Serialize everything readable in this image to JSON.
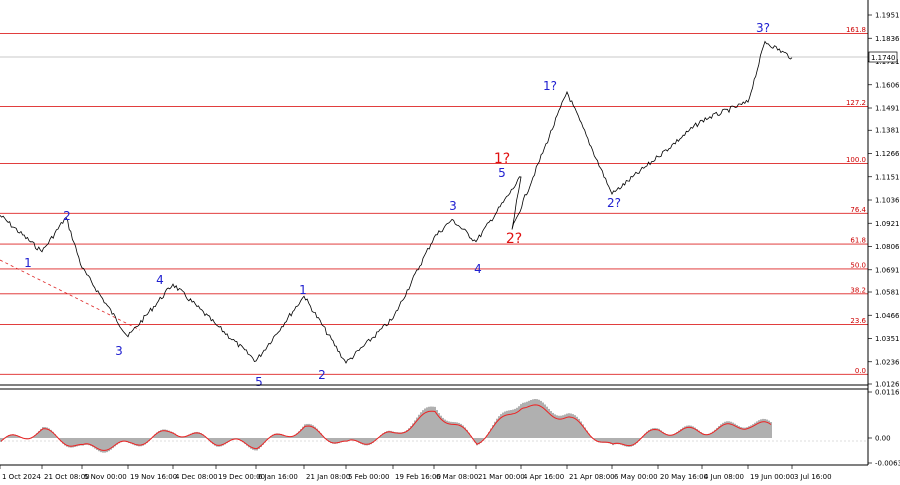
{
  "chart_data": [
    {
      "type": "line",
      "current_price": "1.1740",
      "y_ticks": [
        "1.1951",
        "1.1836",
        "1.1721",
        "1.1606",
        "1.1491",
        "1.1381",
        "1.1266",
        "1.1151",
        "1.1036",
        "1.0921",
        "1.0806",
        "1.0691",
        "1.0581",
        "1.0466",
        "1.0351",
        "1.0236",
        "1.0126"
      ],
      "ylim": [
        1.0126,
        1.1951
      ],
      "x_ticks": [
        "1 Oct 2024",
        "21 Oct 08:00",
        "5 Nov 00:00",
        "19 Nov 16:00",
        "4 Dec 08:00",
        "19 Dec 00:00",
        "6 Jan 16:00",
        "21 Jan 08:00",
        "5 Feb 00:00",
        "19 Feb 16:00",
        "6 Mar 08:00",
        "21 Mar 00:00",
        "4 Apr 16:00",
        "21 Apr 08:00",
        "6 May 00:00",
        "20 May 16:00",
        "4 Jun 08:00",
        "19 Jun 00:00",
        "3 Jul 16:00"
      ],
      "fib_levels": [
        {
          "label": "161.8",
          "value": 1.186
        },
        {
          "label": "127.2",
          "value": 1.1499
        },
        {
          "label": "100.0",
          "value": 1.1216
        },
        {
          "label": "76.4",
          "value": 1.097
        },
        {
          "label": "61.8",
          "value": 1.0818
        },
        {
          "label": "50.0",
          "value": 1.0695
        },
        {
          "label": "38.2",
          "value": 1.0572
        },
        {
          "label": "23.6",
          "value": 1.042
        },
        {
          "label": "0.0",
          "value": 1.0174
        }
      ],
      "wave_labels": [
        {
          "text": "1",
          "color": "blue"
        },
        {
          "text": "2",
          "color": "blue"
        },
        {
          "text": "3",
          "color": "blue"
        },
        {
          "text": "4",
          "color": "blue"
        },
        {
          "text": "5",
          "color": "blue"
        },
        {
          "text": "1",
          "color": "blue"
        },
        {
          "text": "2",
          "color": "blue"
        },
        {
          "text": "3",
          "color": "blue"
        },
        {
          "text": "4",
          "color": "blue"
        },
        {
          "text": "5",
          "color": "blue"
        },
        {
          "text": "1?",
          "color": "red"
        },
        {
          "text": "2?",
          "color": "red"
        },
        {
          "text": "1?",
          "color": "blue"
        },
        {
          "text": "2?",
          "color": "blue"
        },
        {
          "text": "3?",
          "color": "blue"
        }
      ],
      "price_anchors": [
        [
          "1 Oct 2024",
          1.096
        ],
        [
          "21 Oct 08:00",
          1.078
        ],
        [
          "2 Nov",
          1.095
        ],
        [
          "5 Nov 00:00",
          1.07
        ],
        [
          "19 Nov 16:00",
          1.036
        ],
        [
          "4 Dec 08:00",
          1.062
        ],
        [
          "19 Dec 00:00",
          1.042
        ],
        [
          "6 Jan 16:00",
          1.024
        ],
        [
          "21 Jan 08:00",
          1.056
        ],
        [
          "5 Feb 00:00",
          1.023
        ],
        [
          "19 Feb 16:00",
          1.045
        ],
        [
          "6 Mar 08:00",
          1.085
        ],
        [
          "11 Mar",
          1.094
        ],
        [
          "21 Mar 00:00",
          1.083
        ],
        [
          "4 Apr 16:00",
          1.115
        ],
        [
          "8 Apr",
          1.089
        ],
        [
          "21 Apr 08:00",
          1.157
        ],
        [
          "6 May 00:00",
          1.1065
        ],
        [
          "20 May 16:00",
          1.125
        ],
        [
          "4 Jun 08:00",
          1.143
        ],
        [
          "19 Jun 00:00",
          1.152
        ],
        [
          "1 Jul",
          1.182
        ],
        [
          "3 Jul 16:00",
          1.174
        ]
      ]
    },
    {
      "type": "area",
      "y_ticks": [
        "0.01168",
        "0.00",
        "-0.00635"
      ],
      "ylim": [
        -0.00635,
        0.01168
      ],
      "x": [
        "1 Oct 2024",
        "21 Oct 08:00",
        "5 Nov 00:00",
        "19 Nov 16:00",
        "4 Dec 08:00",
        "19 Dec 00:00",
        "6 Jan 16:00",
        "21 Jan 08:00",
        "5 Feb 00:00",
        "19 Feb 16:00",
        "6 Mar 08:00",
        "21 Mar 00:00",
        "4 Apr 16:00",
        "21 Apr 08:00",
        "6 May 00:00",
        "20 May 16:00",
        "4 Jun 08:00",
        "19 Jun 00:00",
        "3 Jul 16:00"
      ],
      "values": [
        -0.001,
        0.002,
        -0.003,
        -0.002,
        0.002,
        -0.001,
        -0.002,
        0.003,
        -0.002,
        0.001,
        0.008,
        -0.001,
        0.01,
        0.006,
        -0.003,
        0.002,
        0.002,
        0.004,
        0.003
      ]
    }
  ]
}
